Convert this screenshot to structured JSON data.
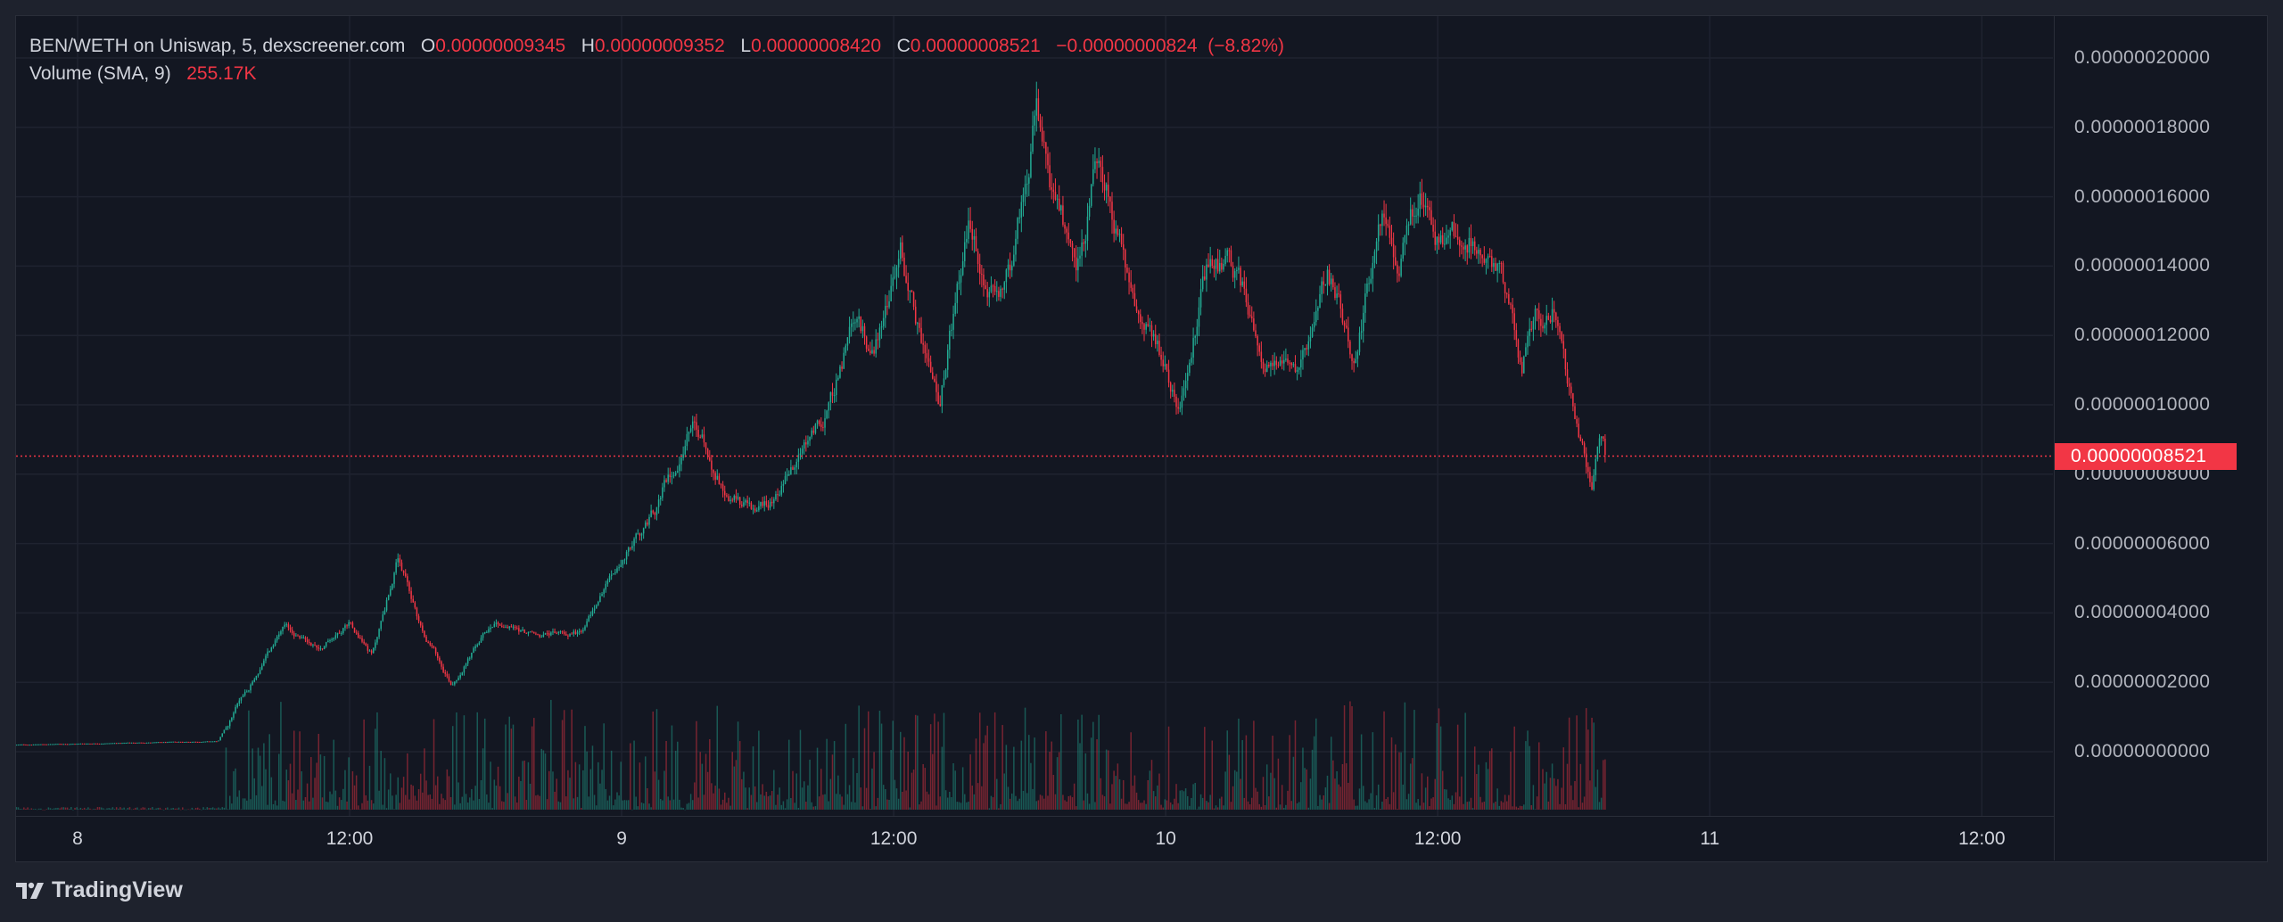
{
  "legend": {
    "symbol": "BEN/WETH on Uniswap, 5, dexscreener.com",
    "open_label": "O",
    "open": "0.00000009345",
    "high_label": "H",
    "high": "0.00000009352",
    "low_label": "L",
    "low": "0.00000008420",
    "close_label": "C",
    "close": "0.00000008521",
    "change": "−0.00000000824",
    "change_pct": "(−8.82%)",
    "volume_label": "Volume (SMA, 9)",
    "volume_value": "255.17K"
  },
  "last_price": "0.00000008521",
  "branding": "TradingView",
  "colors": {
    "up": "#22ab94",
    "down": "#f23645",
    "background": "#131722",
    "grid": "#1f2330"
  },
  "chart_data": {
    "type": "candlestick",
    "title": "BEN/WETH on Uniswap, 5",
    "interval": "5m",
    "price_unit": "1e-8 WETH",
    "yticks": [
      "0.00000020000",
      "0.00000018000",
      "0.00000016000",
      "0.00000014000",
      "0.00000012000",
      "0.00000010000",
      "0.00000008000",
      "0.00000006000",
      "0.00000004000",
      "0.00000002000",
      "0.00000000000"
    ],
    "ylim": [
      0,
      20
    ],
    "xticks": [
      {
        "label": "8",
        "hour": 0
      },
      {
        "label": "12:00",
        "hour": 12
      },
      {
        "label": "9",
        "hour": 24
      },
      {
        "label": "12:00",
        "hour": 36
      },
      {
        "label": "10",
        "hour": 48
      },
      {
        "label": "12:00",
        "hour": 60
      },
      {
        "label": "11",
        "hour": 72
      },
      {
        "label": "12:00",
        "hour": 84
      }
    ],
    "xlim_hours": [
      -3.3,
      86.5
    ],
    "grid": true,
    "price_path_hours_vs_price": [
      [
        -2.7,
        0.2
      ],
      [
        6.2,
        0.3
      ],
      [
        7.2,
        1.5
      ],
      [
        9.1,
        3.5
      ],
      [
        10.7,
        3.0
      ],
      [
        12.0,
        3.8
      ],
      [
        13.0,
        2.8
      ],
      [
        14.1,
        5.5
      ],
      [
        15.2,
        3.5
      ],
      [
        16.5,
        2.0
      ],
      [
        18.4,
        3.8
      ],
      [
        20.3,
        3.3
      ],
      [
        22.3,
        3.5
      ],
      [
        23.5,
        5.0
      ],
      [
        25.5,
        7.0
      ],
      [
        27.1,
        9.5
      ],
      [
        28.7,
        7.5
      ],
      [
        30.0,
        6.8
      ],
      [
        31.6,
        8.2
      ],
      [
        33.2,
        10.0
      ],
      [
        34.1,
        12.0
      ],
      [
        35.1,
        11.5
      ],
      [
        36.3,
        14.5
      ],
      [
        37.2,
        12.0
      ],
      [
        38.0,
        10.0
      ],
      [
        39.3,
        15.0
      ],
      [
        40.2,
        13.0
      ],
      [
        41.2,
        14.0
      ],
      [
        42.3,
        18.5
      ],
      [
        42.9,
        16.0
      ],
      [
        44.1,
        14.0
      ],
      [
        45.0,
        17.0
      ],
      [
        46.0,
        14.5
      ],
      [
        47.3,
        12.0
      ],
      [
        48.6,
        10.0
      ],
      [
        50.0,
        14.5
      ],
      [
        51.2,
        13.5
      ],
      [
        52.4,
        11.5
      ],
      [
        53.7,
        10.5
      ],
      [
        55.1,
        14.0
      ],
      [
        56.3,
        11.5
      ],
      [
        57.6,
        15.5
      ],
      [
        58.2,
        14.0
      ],
      [
        59.2,
        16.0
      ],
      [
        60.1,
        14.5
      ],
      [
        61.4,
        15.0
      ],
      [
        62.7,
        14.0
      ],
      [
        63.7,
        11.0
      ],
      [
        64.3,
        12.5
      ],
      [
        65.1,
        13.0
      ],
      [
        65.9,
        10.0
      ],
      [
        66.8,
        7.5
      ],
      [
        67.2,
        9.0
      ],
      [
        67.4,
        8.521
      ]
    ],
    "volume_sma9": 255170
  }
}
